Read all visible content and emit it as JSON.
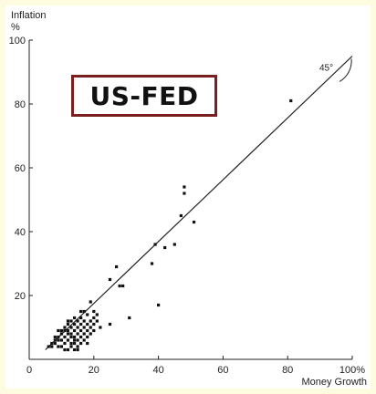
{
  "chart_data": {
    "type": "scatter",
    "ylabel_line1": "Inflation",
    "ylabel_line2": "%",
    "xlabel": "Money Growth",
    "xlim": [
      0,
      100
    ],
    "ylim": [
      0,
      100
    ],
    "x_ticks": [
      "0",
      "20",
      "40",
      "60",
      "80",
      "100%"
    ],
    "y_ticks": [
      "20",
      "40",
      "60",
      "80",
      "100"
    ],
    "reference_line": {
      "label": "45°",
      "from": [
        5,
        3
      ],
      "to": [
        100,
        95
      ]
    },
    "badge_text": "US-FED",
    "points": [
      [
        81,
        81
      ],
      [
        48,
        54
      ],
      [
        48,
        52
      ],
      [
        47,
        45
      ],
      [
        51,
        43
      ],
      [
        45,
        36
      ],
      [
        39,
        36
      ],
      [
        42,
        35
      ],
      [
        38,
        30
      ],
      [
        27,
        29
      ],
      [
        25,
        25
      ],
      [
        28,
        23
      ],
      [
        29,
        23
      ],
      [
        40,
        17
      ],
      [
        19,
        18
      ],
      [
        31,
        13
      ],
      [
        21,
        12
      ],
      [
        25,
        11
      ],
      [
        20,
        15
      ],
      [
        7,
        4
      ],
      [
        7,
        5
      ],
      [
        8,
        5
      ],
      [
        8,
        6
      ],
      [
        9,
        4
      ],
      [
        9,
        7
      ],
      [
        10,
        6
      ],
      [
        10,
        8
      ],
      [
        10,
        4
      ],
      [
        11,
        5
      ],
      [
        11,
        7
      ],
      [
        11,
        9
      ],
      [
        11,
        10
      ],
      [
        12,
        3
      ],
      [
        12,
        6
      ],
      [
        12,
        8
      ],
      [
        12,
        9
      ],
      [
        12,
        11
      ],
      [
        13,
        5
      ],
      [
        13,
        7
      ],
      [
        13,
        8
      ],
      [
        13,
        10
      ],
      [
        13,
        4
      ],
      [
        14,
        6
      ],
      [
        14,
        7
      ],
      [
        14,
        9
      ],
      [
        14,
        11
      ],
      [
        14,
        5
      ],
      [
        15,
        8
      ],
      [
        15,
        10
      ],
      [
        15,
        12
      ],
      [
        15,
        6
      ],
      [
        15,
        4
      ],
      [
        16,
        7
      ],
      [
        16,
        9
      ],
      [
        16,
        11
      ],
      [
        16,
        13
      ],
      [
        16,
        5
      ],
      [
        17,
        8
      ],
      [
        17,
        10
      ],
      [
        17,
        12
      ],
      [
        17,
        6
      ],
      [
        18,
        9
      ],
      [
        18,
        11
      ],
      [
        18,
        14
      ],
      [
        18,
        7
      ],
      [
        19,
        10
      ],
      [
        19,
        12
      ],
      [
        20,
        9
      ],
      [
        20,
        11
      ],
      [
        21,
        14
      ],
      [
        9,
        6
      ],
      [
        10,
        9
      ],
      [
        11,
        3
      ],
      [
        12,
        12
      ],
      [
        14,
        13
      ],
      [
        15,
        3
      ],
      [
        17,
        15
      ],
      [
        13,
        12
      ],
      [
        16,
        15
      ],
      [
        8,
        7
      ],
      [
        9,
        9
      ],
      [
        18,
        5
      ],
      [
        19,
        8
      ],
      [
        20,
        13
      ],
      [
        14,
        3
      ],
      [
        6,
        4
      ],
      [
        22,
        10
      ]
    ]
  }
}
